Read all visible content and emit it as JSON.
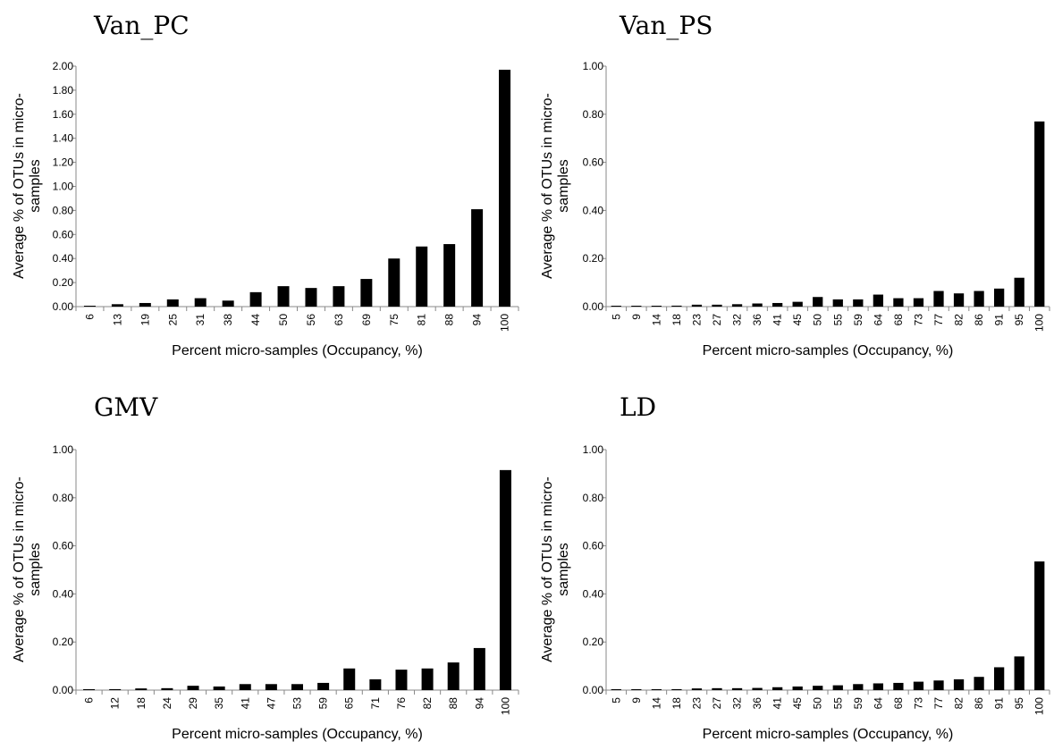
{
  "chart_data": [
    {
      "type": "bar",
      "title": "Van_PC",
      "xlabel": "Percent micro-samples (Occupancy, %)",
      "ylabel_lines": [
        "Average % of OTUs in micro-",
        "samples"
      ],
      "ylim": [
        0,
        2.0
      ],
      "yticks": [
        "0.00",
        "0.20",
        "0.40",
        "0.60",
        "0.80",
        "1.00",
        "1.20",
        "1.40",
        "1.60",
        "1.80",
        "2.00"
      ],
      "categories": [
        "6",
        "13",
        "19",
        "25",
        "31",
        "38",
        "44",
        "50",
        "56",
        "63",
        "69",
        "75",
        "81",
        "88",
        "94",
        "100"
      ],
      "values": [
        0.005,
        0.02,
        0.03,
        0.06,
        0.07,
        0.05,
        0.12,
        0.17,
        0.155,
        0.17,
        0.23,
        0.4,
        0.5,
        0.52,
        0.81,
        1.97
      ]
    },
    {
      "type": "bar",
      "title": "Van_PS",
      "xlabel": "Percent micro-samples (Occupancy, %)",
      "ylabel_lines": [
        "Average % of OTUs in micro-",
        "samples"
      ],
      "ylim": [
        0,
        1.0
      ],
      "yticks": [
        "0.00",
        "0.20",
        "0.40",
        "0.60",
        "0.80",
        "1.00"
      ],
      "categories": [
        "5",
        "9",
        "14",
        "18",
        "23",
        "27",
        "32",
        "36",
        "41",
        "45",
        "50",
        "55",
        "59",
        "64",
        "68",
        "73",
        "77",
        "82",
        "86",
        "91",
        "95",
        "100"
      ],
      "values": [
        0.002,
        0.003,
        0.003,
        0.004,
        0.008,
        0.008,
        0.01,
        0.013,
        0.015,
        0.02,
        0.04,
        0.03,
        0.03,
        0.05,
        0.035,
        0.035,
        0.065,
        0.055,
        0.065,
        0.075,
        0.12,
        0.77
      ]
    },
    {
      "type": "bar",
      "title": "GMV",
      "xlabel": "Percent micro-samples (Occupancy, %)",
      "ylabel_lines": [
        "Average % of OTUs in micro-",
        "samples"
      ],
      "ylim": [
        0,
        1.0
      ],
      "yticks": [
        "0.00",
        "0.20",
        "0.40",
        "0.60",
        "0.80",
        "1.00"
      ],
      "categories": [
        "6",
        "12",
        "18",
        "24",
        "29",
        "35",
        "41",
        "47",
        "53",
        "59",
        "65",
        "71",
        "76",
        "82",
        "88",
        "94",
        "100"
      ],
      "values": [
        0.003,
        0.004,
        0.007,
        0.008,
        0.018,
        0.015,
        0.025,
        0.025,
        0.025,
        0.03,
        0.09,
        0.045,
        0.085,
        0.09,
        0.115,
        0.175,
        0.915
      ]
    },
    {
      "type": "bar",
      "title": "LD",
      "xlabel": "Percent micro-samples (Occupancy, %)",
      "ylabel_lines": [
        "Average % of OTUs in micro-",
        "samples"
      ],
      "ylim": [
        0,
        1.0
      ],
      "yticks": [
        "0.00",
        "0.20",
        "0.40",
        "0.60",
        "0.80",
        "1.00"
      ],
      "categories": [
        "5",
        "9",
        "14",
        "18",
        "23",
        "27",
        "32",
        "36",
        "41",
        "45",
        "50",
        "55",
        "59",
        "64",
        "68",
        "73",
        "77",
        "82",
        "86",
        "91",
        "95",
        "100"
      ],
      "values": [
        0.002,
        0.003,
        0.003,
        0.004,
        0.007,
        0.008,
        0.008,
        0.009,
        0.012,
        0.015,
        0.018,
        0.02,
        0.025,
        0.028,
        0.03,
        0.035,
        0.04,
        0.045,
        0.055,
        0.095,
        0.14,
        0.535
      ]
    }
  ]
}
